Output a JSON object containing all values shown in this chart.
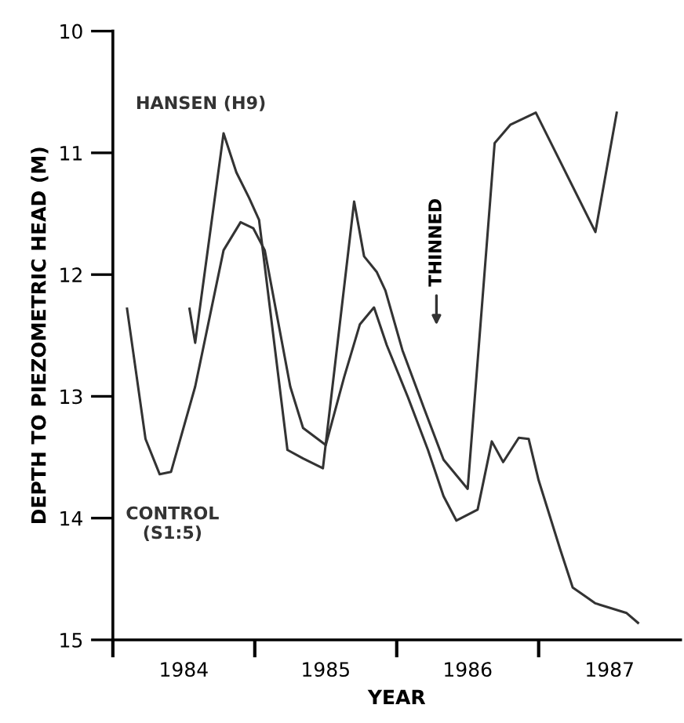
{
  "chart_data": {
    "type": "line",
    "xlabel": "YEAR",
    "ylabel": "DEPTH TO PIEZOMETRIC HEAD (M)",
    "xlim": [
      1984,
      1988
    ],
    "ylim": [
      15,
      10
    ],
    "yticks": [
      10,
      11,
      12,
      13,
      14,
      15
    ],
    "xticks": [
      {
        "value": 1984,
        "label": null
      },
      {
        "value": 1985,
        "label": null
      },
      {
        "value": 1986,
        "label": null
      },
      {
        "value": 1987,
        "label": null
      },
      {
        "value": 1984.5,
        "label": "1984"
      },
      {
        "value": 1985.5,
        "label": "1985"
      },
      {
        "value": 1986.5,
        "label": "1986"
      },
      {
        "value": 1987.5,
        "label": "1987"
      }
    ],
    "grid": false,
    "legend": false,
    "marker": "none",
    "line_style": "solid",
    "series": [
      {
        "name": "HANSEN (H9)",
        "color": "#333333",
        "x": [
          1984.54,
          1984.58,
          1984.78,
          1984.87,
          1984.96,
          1985.03,
          1985.23,
          1985.34,
          1985.48,
          1985.7,
          1985.77,
          1985.86,
          1985.92,
          1986.04,
          1986.19,
          1986.33,
          1986.5,
          1986.69,
          1986.8,
          1986.98,
          1987.4,
          1987.55
        ],
        "values": [
          12.28,
          12.56,
          10.84,
          11.16,
          11.37,
          11.55,
          13.44,
          13.51,
          13.59,
          11.4,
          11.85,
          11.98,
          12.13,
          12.62,
          13.09,
          13.52,
          13.76,
          10.92,
          10.77,
          10.67,
          11.65,
          10.67
        ]
      },
      {
        "name": "CONTROL\n(S1:5)",
        "color": "#333333",
        "x": [
          1984.1,
          1984.23,
          1984.33,
          1984.41,
          1984.58,
          1984.78,
          1984.9,
          1984.99,
          1985.07,
          1985.25,
          1985.34,
          1985.5,
          1985.63,
          1985.74,
          1985.84,
          1985.93,
          1986.08,
          1986.22,
          1986.33,
          1986.42,
          1986.57,
          1986.67,
          1986.75,
          1986.86,
          1986.93,
          1987.0,
          1987.15,
          1987.24,
          1987.4,
          1987.62,
          1987.7
        ],
        "values": [
          12.28,
          13.35,
          13.64,
          13.62,
          12.92,
          11.8,
          11.57,
          11.62,
          11.8,
          12.92,
          13.26,
          13.4,
          12.84,
          12.41,
          12.27,
          12.58,
          13.01,
          13.44,
          13.82,
          14.02,
          13.93,
          13.37,
          13.54,
          13.34,
          13.35,
          13.69,
          14.25,
          14.57,
          14.7,
          14.78,
          14.86
        ]
      }
    ],
    "annotations": [
      "THINNED"
    ]
  }
}
